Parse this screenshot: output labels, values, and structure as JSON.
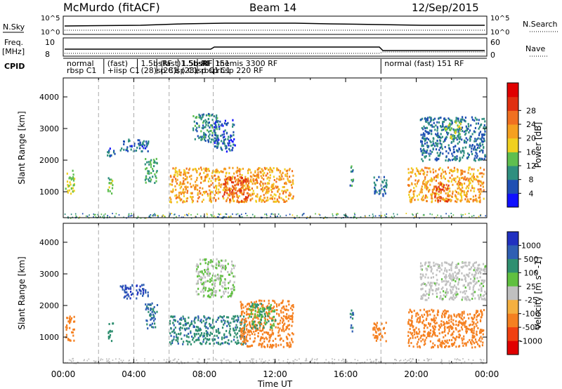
{
  "header": {
    "station": "McMurdo (fitACF)",
    "beam": "Beam 14",
    "date": "12/Sep/2015"
  },
  "status_panels": {
    "nsky_label": "N.Sky",
    "nsky_ticks": [
      "10^5",
      "10^0"
    ],
    "nsearch_label": "N.Search",
    "nsearch_ticks": [
      "10^5",
      "10^0"
    ],
    "freq_label_1": "Freq.",
    "freq_label_2": "[MHz]",
    "freq_ticks": [
      "10",
      "8"
    ],
    "nave_label": "Nave",
    "nave_ticks": [
      "60",
      "0"
    ],
    "cpid_label": "CPID",
    "cpid_entries": [
      {
        "line1": "normal",
        "line2": "rbsp  C1",
        "t": 0.0
      },
      {
        "line1": "(fast)",
        "line2": "+iisp  C1",
        "t": 2.3
      },
      {
        "line1": "1.5bsRF",
        "line2": "(28)sp  C1",
        "t": 4.2
      },
      {
        "line1": "(fast)1.5bsRF",
        "line2": "(28)sp  C1",
        "t": 5.3
      },
      {
        "line1": "1.5bsRF 151",
        "line2": "(28)sp  C1",
        "t": 6.5
      },
      {
        "line1": "RF",
        "line2": "rbsp  C1",
        "t": 7.6
      },
      {
        "line1": "themis  3300  RF",
        "line2": "rbsp  220  RF",
        "t": 8.5
      },
      {
        "line1": "normal  (fast)  151  RF",
        "line2": "",
        "t": 18.0
      }
    ]
  },
  "chart_data": [
    {
      "type": "heatmap",
      "title": "Power",
      "ylabel": "Slant Range [km]",
      "ylim": [
        180,
        4600
      ],
      "yticks": [
        "1000",
        "2000",
        "3000",
        "4000"
      ],
      "xlim": [
        0,
        24
      ],
      "colorbar_label": "Power [dB]",
      "colorbar_ticks": [
        "4",
        "8",
        "12",
        "16",
        "20",
        "24",
        "28"
      ],
      "colorbar_colors": [
        "#1010ff",
        "#1f4fb3",
        "#2f8f7f",
        "#5fbf4f",
        "#f0d020",
        "#f5a020",
        "#f07020",
        "#e03010",
        "#e00000"
      ],
      "grid": "dashed vertical lines at 02:00, 04:00, 06:00, 08:30, 18:00",
      "echo_regions": [
        {
          "t0": 0.1,
          "t1": 0.6,
          "r0": 900,
          "r1": 1700,
          "level": 16
        },
        {
          "t0": 2.5,
          "t1": 2.8,
          "r0": 900,
          "r1": 1500,
          "level": 14
        },
        {
          "t0": 2.4,
          "t1": 3.0,
          "r0": 2150,
          "r1": 2400,
          "level": 6
        },
        {
          "t0": 3.2,
          "t1": 4.8,
          "r0": 2300,
          "r1": 2700,
          "level": 7
        },
        {
          "t0": 4.6,
          "t1": 5.3,
          "r0": 1300,
          "r1": 2100,
          "level": 12
        },
        {
          "t0": 6.0,
          "t1": 13.0,
          "r0": 700,
          "r1": 1800,
          "level": 22
        },
        {
          "t0": 9.0,
          "t1": 10.5,
          "r0": 700,
          "r1": 1500,
          "level": 28
        },
        {
          "t0": 7.3,
          "t1": 8.7,
          "r0": 2600,
          "r1": 3500,
          "level": 10
        },
        {
          "t0": 8.5,
          "t1": 9.7,
          "r0": 2300,
          "r1": 3300,
          "level": 6
        },
        {
          "t0": 16.2,
          "t1": 16.4,
          "r0": 1200,
          "r1": 1900,
          "level": 10
        },
        {
          "t0": 17.5,
          "t1": 18.3,
          "r0": 900,
          "r1": 1500,
          "level": 8
        },
        {
          "t0": 19.5,
          "t1": 23.8,
          "r0": 700,
          "r1": 1800,
          "level": 22
        },
        {
          "t0": 21.0,
          "t1": 21.8,
          "r0": 700,
          "r1": 1300,
          "level": 28
        },
        {
          "t0": 20.2,
          "t1": 23.9,
          "r0": 2000,
          "r1": 3400,
          "level": 8
        },
        {
          "t0": 21.5,
          "t1": 22.5,
          "r0": 2700,
          "r1": 3300,
          "level": 14
        }
      ]
    },
    {
      "type": "heatmap",
      "title": "Velocity",
      "ylabel": "Slant Range [km]",
      "ylim": [
        180,
        4600
      ],
      "yticks": [
        "1000",
        "2000",
        "3000",
        "4000"
      ],
      "xlim": [
        0,
        24
      ],
      "xlabel": "Time UT",
      "xticks": [
        "00:00",
        "04:00",
        "08:00",
        "12:00",
        "16:00",
        "20:00",
        "00:00"
      ],
      "colorbar_label": "Velocity [m s^-1]",
      "colorbar_ticks": [
        "1000",
        "500",
        "100",
        "25",
        "-25",
        "-100",
        "-500",
        "-1000"
      ],
      "colorbar_colors": [
        "#2030c0",
        "#2f5fb3",
        "#2f8f70",
        "#60c040",
        "#c0c0c0",
        "#f5b040",
        "#f58020",
        "#f04010",
        "#e00000"
      ],
      "grid": "dashed vertical lines at 02:00, 04:00, 06:00, 08:30, 18:00",
      "echo_regions": [
        {
          "t0": 0.1,
          "t1": 0.6,
          "r0": 900,
          "r1": 1700,
          "velocity": -100
        },
        {
          "t0": 2.5,
          "t1": 2.8,
          "r0": 900,
          "r1": 1500,
          "velocity": 100
        },
        {
          "t0": 3.2,
          "t1": 4.8,
          "r0": 2250,
          "r1": 2700,
          "velocity": 700
        },
        {
          "t0": 4.6,
          "t1": 5.3,
          "r0": 1300,
          "r1": 2100,
          "velocity": 300
        },
        {
          "t0": 6.0,
          "t1": 10.3,
          "r0": 800,
          "r1": 1700,
          "velocity": 250
        },
        {
          "t0": 10.0,
          "t1": 13.0,
          "r0": 700,
          "r1": 2200,
          "velocity": -120
        },
        {
          "t0": 10.5,
          "t1": 12.0,
          "r0": 1300,
          "r1": 2100,
          "velocity": 60
        },
        {
          "t0": 7.5,
          "t1": 9.7,
          "r0": 2300,
          "r1": 3500,
          "velocity": 20
        },
        {
          "t0": 16.2,
          "t1": 16.4,
          "r0": 1200,
          "r1": 1900,
          "velocity": 300
        },
        {
          "t0": 17.5,
          "t1": 18.3,
          "r0": 900,
          "r1": 1500,
          "velocity": -150
        },
        {
          "t0": 19.5,
          "t1": 23.8,
          "r0": 700,
          "r1": 1900,
          "velocity": -150
        },
        {
          "t0": 20.2,
          "t1": 23.9,
          "r0": 2200,
          "r1": 3400,
          "velocity": 15
        }
      ]
    }
  ]
}
